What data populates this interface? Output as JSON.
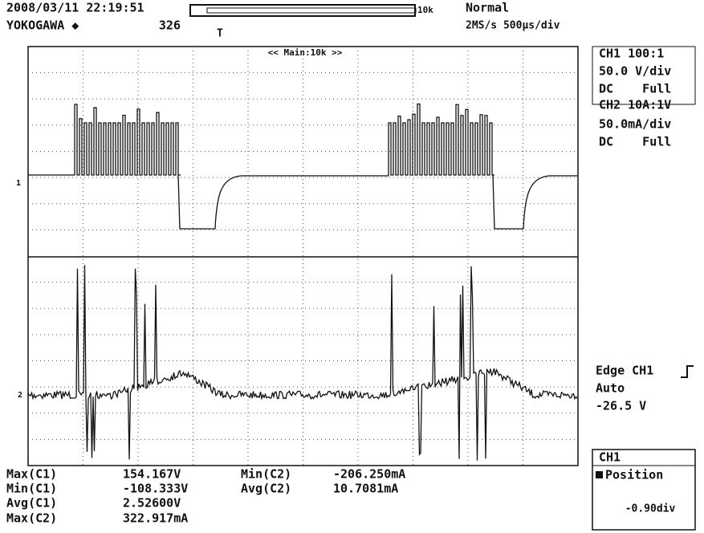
{
  "header": {
    "datetime": "2008/03/11 22:19:51",
    "brand": "YOKOGAWA ◆",
    "count": "326",
    "record_length": "10k",
    "trigger_mode": "Normal",
    "sample_rate": "2MS/s 500µs/div",
    "zoom_label": "<< Main:10k >>"
  },
  "channels": [
    {
      "name": "CH1 100:1",
      "scale": "50.0 V/div",
      "coupling": "DC    Full"
    },
    {
      "name": "CH2 10A:1V",
      "scale": "50.0mA/div",
      "coupling": "DC    Full"
    }
  ],
  "trigger": {
    "type": "Edge CH1",
    "mode": "Auto",
    "level": "-26.5 V"
  },
  "position_box": {
    "channel": "CH1",
    "label": "Position",
    "value": "-0.90div"
  },
  "measurements": [
    {
      "label": "Max(C1)",
      "value": "154.167V"
    },
    {
      "label": "Min(C1)",
      "value": "-108.333V"
    },
    {
      "label": "Avg(C1)",
      "value": "2.52600V"
    },
    {
      "label": "Max(C2)",
      "value": "322.917mA"
    },
    {
      "label": "Min(C2)",
      "value": "-206.250mA"
    },
    {
      "label": "Avg(C2)",
      "value": "10.7081mA"
    }
  ]
}
